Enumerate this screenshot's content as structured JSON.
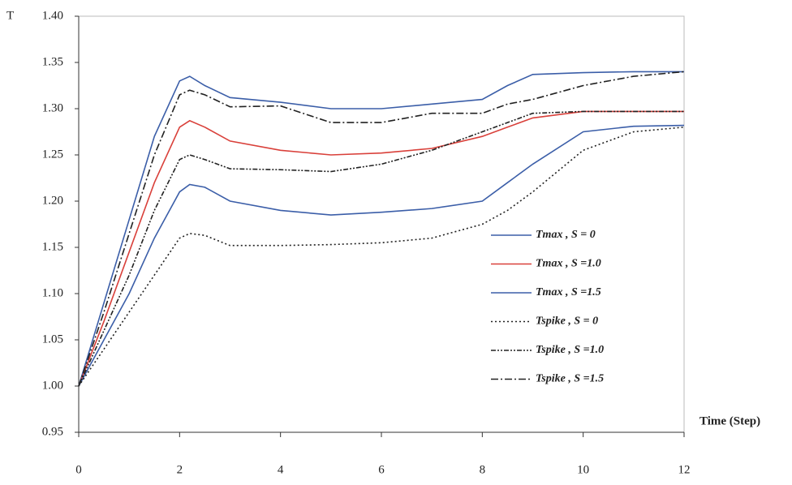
{
  "chart_data": {
    "type": "line",
    "y_label": "T",
    "x_label": "Time (Step)",
    "x": [
      0,
      0.5,
      1,
      1.5,
      2,
      2.2,
      2.5,
      3,
      4,
      5,
      6,
      7,
      8,
      8.5,
      9,
      10,
      11,
      12
    ],
    "series": [
      {
        "name": "Tmax , S = 0",
        "color": "#3b5ea8",
        "dash": "none",
        "values": [
          1.0,
          1.09,
          1.18,
          1.27,
          1.33,
          1.335,
          1.325,
          1.312,
          1.307,
          1.3,
          1.3,
          1.305,
          1.31,
          1.325,
          1.337,
          1.339,
          1.34,
          1.34
        ]
      },
      {
        "name": "Tmax , S =1.0",
        "color": "#d9403a",
        "dash": "none",
        "values": [
          1.0,
          1.07,
          1.145,
          1.22,
          1.28,
          1.287,
          1.28,
          1.265,
          1.255,
          1.25,
          1.252,
          1.257,
          1.27,
          1.28,
          1.29,
          1.297,
          1.297,
          1.297
        ]
      },
      {
        "name": "Tmax , S =1.5",
        "color": "#3b5ea8",
        "dash": "none",
        "values": [
          1.0,
          1.05,
          1.1,
          1.16,
          1.21,
          1.218,
          1.215,
          1.2,
          1.19,
          1.185,
          1.188,
          1.192,
          1.2,
          1.22,
          1.24,
          1.275,
          1.281,
          1.282
        ]
      },
      {
        "name": "Tspike , S = 0",
        "color": "#222222",
        "dash": "2,3",
        "values": [
          1.0,
          1.04,
          1.08,
          1.12,
          1.16,
          1.165,
          1.163,
          1.152,
          1.152,
          1.153,
          1.155,
          1.16,
          1.175,
          1.19,
          1.21,
          1.255,
          1.275,
          1.28
        ]
      },
      {
        "name": "Tspike , S =1.0",
        "color": "#222222",
        "dash": "6,2,2,2,2,2",
        "values": [
          1.0,
          1.06,
          1.12,
          1.19,
          1.245,
          1.25,
          1.245,
          1.235,
          1.234,
          1.232,
          1.24,
          1.255,
          1.275,
          1.285,
          1.295,
          1.297,
          1.297,
          1.297
        ]
      },
      {
        "name": "Tspike , S =1.5",
        "color": "#222222",
        "dash": "9,3,2,3",
        "values": [
          1.0,
          1.08,
          1.165,
          1.25,
          1.315,
          1.32,
          1.315,
          1.302,
          1.303,
          1.285,
          1.285,
          1.295,
          1.295,
          1.305,
          1.31,
          1.325,
          1.335,
          1.34
        ]
      }
    ],
    "xlim": [
      0,
      12
    ],
    "xticks": [
      0,
      2,
      4,
      6,
      8,
      10,
      12
    ],
    "ylim": [
      0.95,
      1.4
    ],
    "yticks": [
      0.95,
      {
        "value": 1.0,
        "label": "1.00"
      },
      1.05,
      {
        "value": 1.1,
        "label": "1.10"
      },
      1.15,
      {
        "value": 1.2,
        "label": "1.20"
      },
      1.25,
      {
        "value": 1.3,
        "label": "1.30"
      },
      1.35,
      {
        "value": 1.4,
        "label": "1.40"
      }
    ],
    "grid": false
  }
}
